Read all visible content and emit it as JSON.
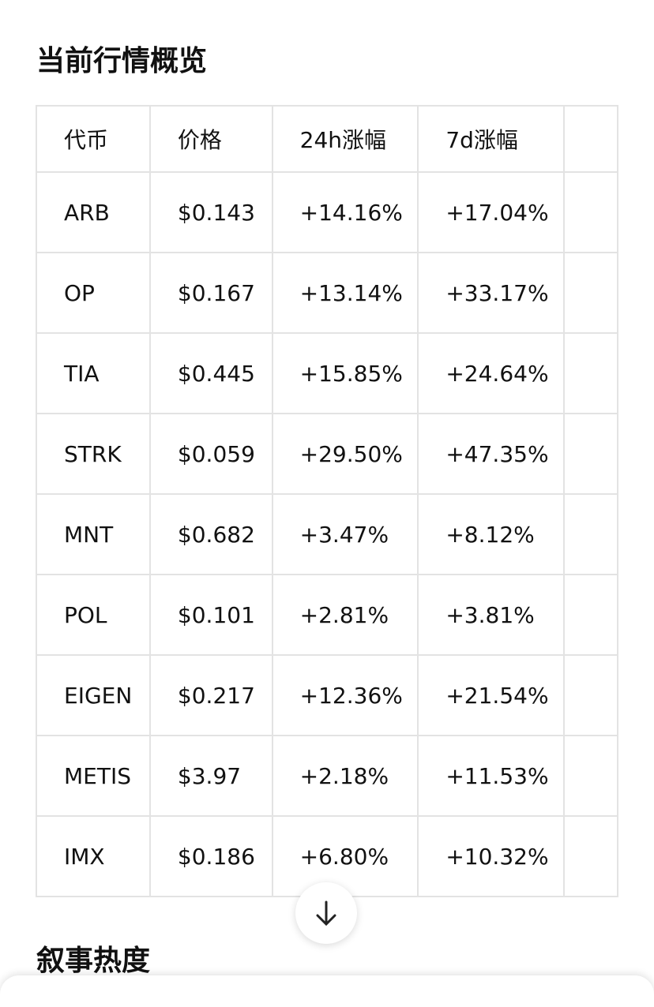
{
  "header": {
    "title": "当前行情概览"
  },
  "table": {
    "columns": [
      "代币",
      "价格",
      "24h涨幅",
      "7d涨幅"
    ],
    "rows": [
      [
        "ARB",
        "$0.143",
        "+14.16%",
        "+17.04%"
      ],
      [
        "OP",
        "$0.167",
        "+13.14%",
        "+33.17%"
      ],
      [
        "TIA",
        "$0.445",
        "+15.85%",
        "+24.64%"
      ],
      [
        "STRK",
        "$0.059",
        "+29.50%",
        "+47.35%"
      ],
      [
        "MNT",
        "$0.682",
        "+3.47%",
        "+8.12%"
      ],
      [
        "POL",
        "$0.101",
        "+2.81%",
        "+3.81%"
      ],
      [
        "EIGEN",
        "$0.217",
        "+12.36%",
        "+21.54%"
      ],
      [
        "METIS",
        "$3.97",
        "+2.18%",
        "+11.53%"
      ],
      [
        "IMX",
        "$0.186",
        "+6.80%",
        "+10.32%"
      ]
    ]
  },
  "section": {
    "title": "叙事热度"
  }
}
